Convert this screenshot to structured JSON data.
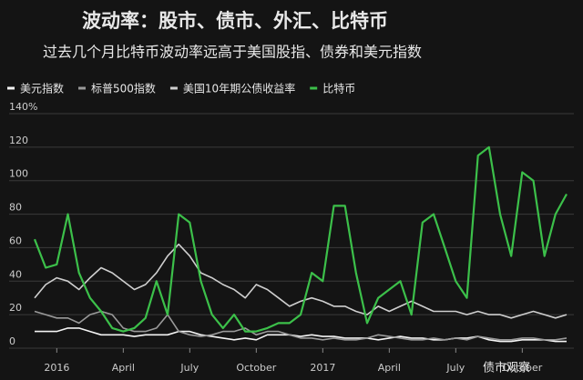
{
  "chart_data": {
    "type": "line",
    "title": "波动率：股市、债市、外汇、比特币",
    "subtitle": "过去几个月比特币波动率远高于美国股指、债券和美元指数",
    "categories": [
      null,
      null,
      "2016",
      null,
      null,
      null,
      null,
      null,
      "April",
      null,
      null,
      null,
      null,
      null,
      "July",
      null,
      null,
      null,
      null,
      null,
      "October",
      null,
      null,
      null,
      null,
      null,
      "2017",
      null,
      null,
      null,
      null,
      null,
      "April",
      null,
      null,
      null,
      null,
      null,
      "July",
      null,
      null,
      null,
      null,
      null,
      "October",
      null,
      null,
      null,
      null
    ],
    "ylim": [
      0,
      140
    ],
    "yticks": [
      0,
      20,
      40,
      60,
      80,
      100,
      120,
      {
        "value": 140,
        "label": "140%"
      }
    ],
    "grid": true,
    "series": [
      {
        "name": "美元指数",
        "color": "#f4f4f4",
        "values": [
          10,
          10,
          10,
          12,
          12,
          10,
          8,
          8,
          8,
          7,
          8,
          8,
          8,
          10,
          10,
          8,
          7,
          6,
          5,
          6,
          5,
          8,
          8,
          8,
          7,
          8,
          7,
          7,
          6,
          6,
          6,
          5,
          6,
          7,
          6,
          6,
          5,
          5,
          6,
          6,
          7,
          5,
          4,
          4,
          5,
          5,
          5,
          4,
          4
        ]
      },
      {
        "name": "标普500指数",
        "color": "#9a9a9a",
        "values": [
          22,
          20,
          18,
          18,
          15,
          20,
          22,
          20,
          12,
          10,
          10,
          12,
          20,
          10,
          8,
          7,
          8,
          10,
          10,
          12,
          8,
          10,
          10,
          8,
          6,
          6,
          5,
          6,
          5,
          5,
          6,
          8,
          7,
          6,
          5,
          5,
          6,
          5,
          6,
          5,
          7,
          6,
          5,
          5,
          6,
          6,
          5,
          5,
          6
        ]
      },
      {
        "name": "美国10年期公债收益率",
        "color": "#cfcfcf",
        "values": [
          30,
          38,
          42,
          40,
          35,
          42,
          48,
          45,
          40,
          35,
          38,
          45,
          55,
          62,
          55,
          45,
          42,
          38,
          35,
          30,
          38,
          35,
          30,
          25,
          28,
          30,
          28,
          25,
          25,
          22,
          20,
          25,
          22,
          25,
          28,
          25,
          22,
          22,
          22,
          20,
          22,
          20,
          20,
          18,
          20,
          22,
          20,
          18,
          20
        ]
      },
      {
        "name": "比特币",
        "color": "#3cc04a",
        "values": [
          65,
          48,
          50,
          80,
          45,
          30,
          22,
          12,
          10,
          12,
          18,
          40,
          20,
          80,
          75,
          40,
          20,
          12,
          20,
          10,
          10,
          12,
          15,
          15,
          20,
          45,
          40,
          85,
          85,
          45,
          15,
          30,
          35,
          40,
          20,
          75,
          80,
          60,
          40,
          30,
          115,
          120,
          80,
          55,
          105,
          100,
          55,
          80,
          92
        ]
      }
    ]
  },
  "watermark": "债市观察"
}
